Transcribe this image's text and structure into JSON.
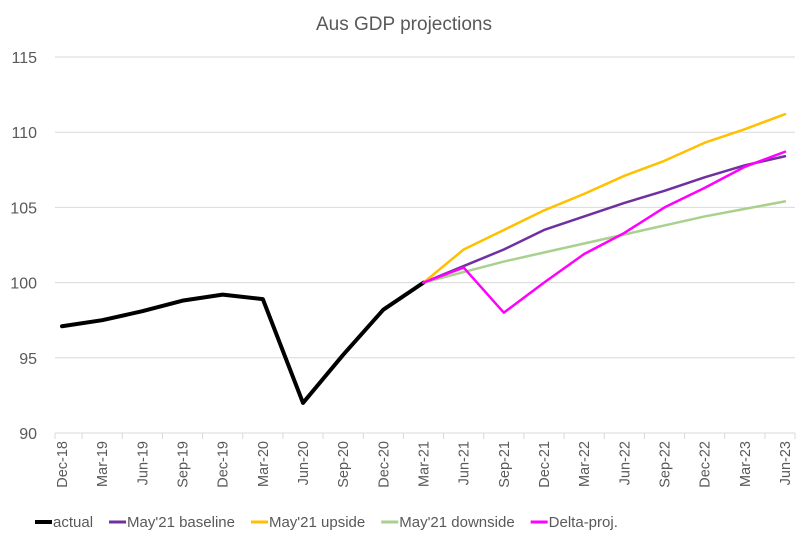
{
  "chart_data": {
    "type": "line",
    "title": "Aus GDP projections",
    "xlabel": "",
    "ylabel": "",
    "ylim": [
      90,
      115
    ],
    "yticks": [
      90,
      95,
      100,
      105,
      110,
      115
    ],
    "grid": true,
    "legend_position": "bottom",
    "categories": [
      "Dec-18",
      "Mar-19",
      "Jun-19",
      "Sep-19",
      "Dec-19",
      "Mar-20",
      "Jun-20",
      "Sep-20",
      "Dec-20",
      "Mar-21",
      "Jun-21",
      "Sep-21",
      "Dec-21",
      "Mar-22",
      "Jun-22",
      "Sep-22",
      "Dec-22",
      "Mar-23",
      "Jun-23"
    ],
    "series": [
      {
        "name": "actual",
        "color": "#000000",
        "width": "thick",
        "values": [
          97.1,
          97.5,
          98.1,
          98.8,
          99.2,
          98.9,
          92.0,
          95.2,
          98.2,
          100.0,
          null,
          null,
          null,
          null,
          null,
          null,
          null,
          null,
          null
        ]
      },
      {
        "name": "May'21 baseline",
        "color": "#7030a0",
        "values": [
          null,
          null,
          null,
          null,
          null,
          null,
          null,
          null,
          null,
          100.0,
          101.1,
          102.2,
          103.5,
          104.4,
          105.3,
          106.1,
          107.0,
          107.8,
          108.4
        ]
      },
      {
        "name": "May'21 upside",
        "color": "#ffc000",
        "values": [
          null,
          null,
          null,
          null,
          null,
          null,
          null,
          null,
          null,
          100.0,
          102.2,
          103.5,
          104.8,
          105.9,
          107.1,
          108.1,
          109.3,
          110.2,
          111.2
        ]
      },
      {
        "name": "May'21 downside",
        "color": "#a9d18e",
        "values": [
          null,
          null,
          null,
          null,
          null,
          null,
          null,
          null,
          null,
          100.0,
          100.7,
          101.4,
          102.0,
          102.6,
          103.2,
          103.8,
          104.4,
          104.9,
          105.4
        ]
      },
      {
        "name": "Delta-proj.",
        "color": "#ff00ff",
        "values": [
          null,
          null,
          null,
          null,
          null,
          null,
          null,
          null,
          null,
          100.0,
          101.0,
          98.0,
          100.0,
          101.9,
          103.3,
          105.0,
          106.3,
          107.7,
          108.7
        ]
      }
    ]
  }
}
